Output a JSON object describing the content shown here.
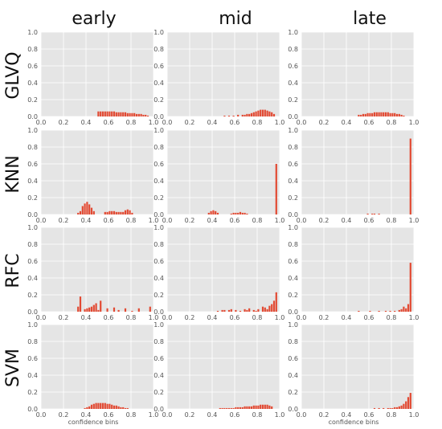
{
  "chart_data": {
    "type": "bar",
    "layout": "grid",
    "columns": [
      "early",
      "mid",
      "late"
    ],
    "rows": [
      "GLVQ",
      "KNN",
      "RFC",
      "SVM"
    ],
    "xlabel": "confidence bins",
    "xlim": [
      0.0,
      1.0
    ],
    "ylim": [
      0.0,
      1.0
    ],
    "xticks": [
      "0.0",
      "0.2",
      "0.4",
      "0.6",
      "0.8",
      "1.0"
    ],
    "yticks": [
      "0.0",
      "0.2",
      "0.4",
      "0.6",
      "0.8",
      "1.0"
    ],
    "grid": true,
    "bar_color": "#e24a33",
    "panel_bg": "#e5e5e5",
    "bin_width": 0.02,
    "panels": [
      {
        "row": "GLVQ",
        "col": "early",
        "bars": [
          [
            0.51,
            0.06
          ],
          [
            0.53,
            0.06
          ],
          [
            0.55,
            0.06
          ],
          [
            0.57,
            0.06
          ],
          [
            0.59,
            0.06
          ],
          [
            0.61,
            0.06
          ],
          [
            0.63,
            0.06
          ],
          [
            0.65,
            0.06
          ],
          [
            0.67,
            0.05
          ],
          [
            0.69,
            0.05
          ],
          [
            0.71,
            0.05
          ],
          [
            0.73,
            0.05
          ],
          [
            0.75,
            0.05
          ],
          [
            0.77,
            0.04
          ],
          [
            0.79,
            0.04
          ],
          [
            0.81,
            0.04
          ],
          [
            0.83,
            0.04
          ],
          [
            0.85,
            0.03
          ],
          [
            0.87,
            0.03
          ],
          [
            0.89,
            0.03
          ],
          [
            0.91,
            0.02
          ],
          [
            0.93,
            0.02
          ],
          [
            0.95,
            0.01
          ]
        ]
      },
      {
        "row": "GLVQ",
        "col": "mid",
        "bars": [
          [
            0.51,
            0.01
          ],
          [
            0.55,
            0.01
          ],
          [
            0.59,
            0.01
          ],
          [
            0.63,
            0.02
          ],
          [
            0.67,
            0.02
          ],
          [
            0.69,
            0.02
          ],
          [
            0.71,
            0.03
          ],
          [
            0.73,
            0.03
          ],
          [
            0.75,
            0.04
          ],
          [
            0.77,
            0.05
          ],
          [
            0.79,
            0.06
          ],
          [
            0.81,
            0.07
          ],
          [
            0.83,
            0.08
          ],
          [
            0.85,
            0.08
          ],
          [
            0.87,
            0.08
          ],
          [
            0.89,
            0.07
          ],
          [
            0.91,
            0.06
          ],
          [
            0.93,
            0.05
          ],
          [
            0.95,
            0.03
          ]
        ]
      },
      {
        "row": "GLVQ",
        "col": "late",
        "bars": [
          [
            0.51,
            0.02
          ],
          [
            0.53,
            0.02
          ],
          [
            0.55,
            0.03
          ],
          [
            0.57,
            0.03
          ],
          [
            0.59,
            0.04
          ],
          [
            0.61,
            0.04
          ],
          [
            0.63,
            0.04
          ],
          [
            0.65,
            0.05
          ],
          [
            0.67,
            0.05
          ],
          [
            0.69,
            0.05
          ],
          [
            0.71,
            0.05
          ],
          [
            0.73,
            0.05
          ],
          [
            0.75,
            0.05
          ],
          [
            0.77,
            0.05
          ],
          [
            0.79,
            0.04
          ],
          [
            0.81,
            0.04
          ],
          [
            0.83,
            0.04
          ],
          [
            0.85,
            0.03
          ],
          [
            0.87,
            0.03
          ],
          [
            0.89,
            0.02
          ],
          [
            0.91,
            0.01
          ]
        ]
      },
      {
        "row": "KNN",
        "col": "early",
        "bars": [
          [
            0.33,
            0.02
          ],
          [
            0.35,
            0.04
          ],
          [
            0.37,
            0.1
          ],
          [
            0.39,
            0.13
          ],
          [
            0.41,
            0.15
          ],
          [
            0.43,
            0.12
          ],
          [
            0.45,
            0.08
          ],
          [
            0.47,
            0.04
          ],
          [
            0.57,
            0.03
          ],
          [
            0.59,
            0.03
          ],
          [
            0.61,
            0.04
          ],
          [
            0.63,
            0.04
          ],
          [
            0.65,
            0.04
          ],
          [
            0.67,
            0.03
          ],
          [
            0.69,
            0.03
          ],
          [
            0.71,
            0.03
          ],
          [
            0.73,
            0.03
          ],
          [
            0.75,
            0.05
          ],
          [
            0.77,
            0.06
          ],
          [
            0.79,
            0.05
          ],
          [
            0.81,
            0.02
          ]
        ]
      },
      {
        "row": "KNN",
        "col": "mid",
        "bars": [
          [
            0.37,
            0.02
          ],
          [
            0.39,
            0.04
          ],
          [
            0.41,
            0.05
          ],
          [
            0.43,
            0.04
          ],
          [
            0.45,
            0.02
          ],
          [
            0.57,
            0.01
          ],
          [
            0.59,
            0.02
          ],
          [
            0.61,
            0.02
          ],
          [
            0.63,
            0.02
          ],
          [
            0.65,
            0.03
          ],
          [
            0.67,
            0.02
          ],
          [
            0.69,
            0.02
          ],
          [
            0.71,
            0.01
          ],
          [
            0.97,
            0.6
          ]
        ]
      },
      {
        "row": "KNN",
        "col": "late",
        "bars": [
          [
            0.59,
            0.01
          ],
          [
            0.63,
            0.01
          ],
          [
            0.65,
            0.01
          ],
          [
            0.69,
            0.01
          ],
          [
            0.97,
            0.9
          ]
        ]
      },
      {
        "row": "RFC",
        "col": "early",
        "bars": [
          [
            0.33,
            0.06
          ],
          [
            0.35,
            0.18
          ],
          [
            0.39,
            0.03
          ],
          [
            0.41,
            0.04
          ],
          [
            0.43,
            0.05
          ],
          [
            0.45,
            0.06
          ],
          [
            0.47,
            0.08
          ],
          [
            0.49,
            0.1
          ],
          [
            0.51,
            0.02
          ],
          [
            0.53,
            0.13
          ],
          [
            0.59,
            0.04
          ],
          [
            0.65,
            0.05
          ],
          [
            0.69,
            0.02
          ],
          [
            0.75,
            0.04
          ],
          [
            0.81,
            0.01
          ],
          [
            0.87,
            0.04
          ],
          [
            0.97,
            0.06
          ]
        ]
      },
      {
        "row": "RFC",
        "col": "mid",
        "bars": [
          [
            0.45,
            0.01
          ],
          [
            0.49,
            0.02
          ],
          [
            0.51,
            0.02
          ],
          [
            0.55,
            0.02
          ],
          [
            0.57,
            0.03
          ],
          [
            0.61,
            0.02
          ],
          [
            0.65,
            0.01
          ],
          [
            0.69,
            0.03
          ],
          [
            0.71,
            0.02
          ],
          [
            0.73,
            0.04
          ],
          [
            0.77,
            0.02
          ],
          [
            0.79,
            0.01
          ],
          [
            0.81,
            0.03
          ],
          [
            0.85,
            0.06
          ],
          [
            0.87,
            0.05
          ],
          [
            0.89,
            0.03
          ],
          [
            0.91,
            0.07
          ],
          [
            0.93,
            0.09
          ],
          [
            0.95,
            0.13
          ],
          [
            0.97,
            0.23
          ]
        ]
      },
      {
        "row": "RFC",
        "col": "late",
        "bars": [
          [
            0.51,
            0.01
          ],
          [
            0.61,
            0.01
          ],
          [
            0.69,
            0.01
          ],
          [
            0.75,
            0.01
          ],
          [
            0.79,
            0.01
          ],
          [
            0.83,
            0.01
          ],
          [
            0.87,
            0.02
          ],
          [
            0.89,
            0.03
          ],
          [
            0.91,
            0.06
          ],
          [
            0.93,
            0.04
          ],
          [
            0.95,
            0.09
          ],
          [
            0.97,
            0.58
          ]
        ]
      },
      {
        "row": "SVM",
        "col": "early",
        "bars": [
          [
            0.39,
            0.01
          ],
          [
            0.41,
            0.02
          ],
          [
            0.43,
            0.03
          ],
          [
            0.45,
            0.05
          ],
          [
            0.47,
            0.06
          ],
          [
            0.49,
            0.07
          ],
          [
            0.51,
            0.07
          ],
          [
            0.53,
            0.07
          ],
          [
            0.55,
            0.07
          ],
          [
            0.57,
            0.07
          ],
          [
            0.59,
            0.06
          ],
          [
            0.61,
            0.06
          ],
          [
            0.63,
            0.05
          ],
          [
            0.65,
            0.04
          ],
          [
            0.67,
            0.04
          ],
          [
            0.69,
            0.03
          ],
          [
            0.71,
            0.02
          ],
          [
            0.73,
            0.02
          ],
          [
            0.75,
            0.01
          ],
          [
            0.77,
            0.01
          ]
        ]
      },
      {
        "row": "SVM",
        "col": "mid",
        "bars": [
          [
            0.47,
            0.01
          ],
          [
            0.49,
            0.01
          ],
          [
            0.51,
            0.01
          ],
          [
            0.53,
            0.01
          ],
          [
            0.55,
            0.01
          ],
          [
            0.57,
            0.01
          ],
          [
            0.59,
            0.01
          ],
          [
            0.61,
            0.02
          ],
          [
            0.63,
            0.02
          ],
          [
            0.65,
            0.02
          ],
          [
            0.67,
            0.02
          ],
          [
            0.69,
            0.03
          ],
          [
            0.71,
            0.03
          ],
          [
            0.73,
            0.03
          ],
          [
            0.75,
            0.03
          ],
          [
            0.77,
            0.04
          ],
          [
            0.79,
            0.04
          ],
          [
            0.81,
            0.04
          ],
          [
            0.83,
            0.05
          ],
          [
            0.85,
            0.05
          ],
          [
            0.87,
            0.05
          ],
          [
            0.89,
            0.05
          ],
          [
            0.91,
            0.04
          ],
          [
            0.93,
            0.03
          ]
        ]
      },
      {
        "row": "SVM",
        "col": "late",
        "bars": [
          [
            0.65,
            0.01
          ],
          [
            0.69,
            0.01
          ],
          [
            0.73,
            0.01
          ],
          [
            0.77,
            0.01
          ],
          [
            0.79,
            0.01
          ],
          [
            0.81,
            0.01
          ],
          [
            0.83,
            0.02
          ],
          [
            0.85,
            0.02
          ],
          [
            0.87,
            0.03
          ],
          [
            0.89,
            0.04
          ],
          [
            0.91,
            0.06
          ],
          [
            0.93,
            0.09
          ],
          [
            0.95,
            0.14
          ],
          [
            0.97,
            0.19
          ]
        ]
      }
    ]
  }
}
